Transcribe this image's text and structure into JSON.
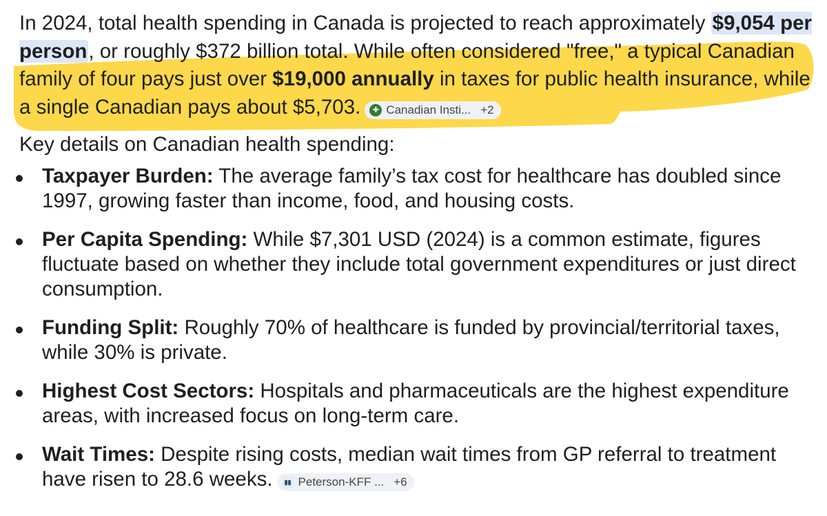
{
  "intro": {
    "part1": "In 2024, total health spending in Canada is projected to reach approximately ",
    "per_person": "$9,054 per person",
    "part2": ", or roughly $372 billion total. While often considered \"free,\" a typical Canadian family of four pays just over ",
    "family_amount": "$19,000 annually",
    "part3": " in taxes for public health insurance, while a single Canadian pays about $5,703.",
    "source_chip": {
      "label": "Canadian Insti...",
      "more": "+2",
      "icon": "cihi-favicon-icon"
    }
  },
  "section_title": "Key details on Canadian health spending:",
  "details": [
    {
      "term": "Taxpayer Burden:",
      "text": " The average family’s tax cost for healthcare has doubled since 1997, growing faster than income, food, and housing costs."
    },
    {
      "term": "Per Capita Spending:",
      "text": " While $7,301 USD (2024) is a common estimate, figures fluctuate based on whether they include total government expenditures or just direct consumption."
    },
    {
      "term": "Funding Split:",
      "text": " Roughly 70% of healthcare is funded by provincial/territorial taxes, while 30% is private."
    },
    {
      "term": "Highest Cost Sectors:",
      "text": " Hospitals and pharmaceuticals are the highest expenditure areas, with increased focus on long-term care."
    },
    {
      "term": "Wait Times:",
      "text": " Despite rising costs, median wait times from GP referral to treatment have risen to 28.6 weeks.",
      "source_chip": {
        "label": "Peterson-KFF ...",
        "more": "+6",
        "icon": "peterson-kff-favicon-icon"
      }
    }
  ],
  "colors": {
    "highlight": "#fcd12a",
    "selection": "#dbe6f7",
    "chip_bg": "#eef1f5",
    "text": "#1f1f1f"
  }
}
